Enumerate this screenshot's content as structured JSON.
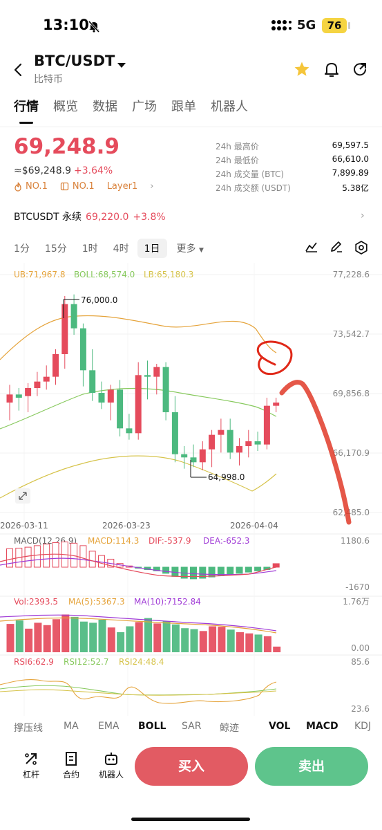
{
  "status": {
    "time": "13:10",
    "network": "5G",
    "battery": "76"
  },
  "header": {
    "pair": "BTC/USDT",
    "subtitle": "比特币"
  },
  "tabs": [
    "行情",
    "概览",
    "数据",
    "广场",
    "跟单",
    "机器人"
  ],
  "price": {
    "last": "69,248.9",
    "usd": "≈$69,248.9",
    "change": "+3.64%",
    "badges": [
      "NO.1",
      "NO.1",
      "Layer1"
    ]
  },
  "stats": [
    {
      "label": "24h 最高价",
      "value": "69,597.5"
    },
    {
      "label": "24h 最低价",
      "value": "66,610.0"
    },
    {
      "label": "24h 成交量 (BTC)",
      "value": "7,899.89"
    },
    {
      "label": "24h 成交额 (USDT)",
      "value": "5.38亿"
    }
  ],
  "perpetual": {
    "name": "BTCUSDT 永续",
    "price": "69,220.0",
    "change": "+3.8%"
  },
  "timeframes": {
    "items": [
      "1分",
      "15分",
      "1时",
      "4时",
      "1日",
      "更多"
    ],
    "selected": "1日"
  },
  "main_legend": {
    "ub": "UB:71,967.8",
    "boll": "BOLL:68,574.0",
    "lb": "LB:65,180.3"
  },
  "price_axis": [
    "77,228.6",
    "73,542.7",
    "69,856.8",
    "66,170.9",
    "62,485.0"
  ],
  "date_axis": [
    "2026-03-11",
    "2026-03-23",
    "2026-04-04"
  ],
  "annotations": {
    "high": "76,000.0",
    "low": "64,998.0"
  },
  "macd_legend": {
    "name": "MACD(12,26,9)",
    "macd": "MACD:114.3",
    "dif": "DIF:-537.9",
    "dea": "DEA:-652.3",
    "top": "1180.6",
    "bottom": "-1670"
  },
  "vol_legend": {
    "vol": "Vol:2393.5",
    "ma5": "MA(5):5367.3",
    "ma10": "MA(10):7152.84",
    "top": "1.76万",
    "bottom": "0.00"
  },
  "rsi_legend": {
    "rsi6": "RSI6:62.9",
    "rsi12": "RSI12:52.7",
    "rsi24": "RSI24:48.4",
    "top": "85.6",
    "bottom": "23.6"
  },
  "indicators": [
    "撑压线",
    "MA",
    "EMA",
    "BOLL",
    "SAR",
    "鲸迹",
    "VOL",
    "MACD",
    "KDJ"
  ],
  "bottom_bar": {
    "leverage": "杠杆",
    "contract": "合约",
    "robot": "机器人",
    "buy": "买入",
    "sell": "卖出"
  },
  "colors": {
    "up": "#e54b5c",
    "down": "#4cb97f",
    "ub": "#e5a33a",
    "boll": "#87c95d",
    "lb": "#d6c34a"
  },
  "chart_data": {
    "type": "candlestick",
    "interval": "1日",
    "ylim": [
      62485.0,
      77228.6
    ],
    "candles": [
      {
        "o": 69300,
        "h": 70400,
        "l": 68200,
        "c": 69800
      },
      {
        "o": 69800,
        "h": 70200,
        "l": 68800,
        "c": 69600
      },
      {
        "o": 69700,
        "h": 70500,
        "l": 68700,
        "c": 70200
      },
      {
        "o": 70200,
        "h": 71200,
        "l": 69700,
        "c": 70600
      },
      {
        "o": 70600,
        "h": 71600,
        "l": 70100,
        "c": 70900
      },
      {
        "o": 70900,
        "h": 72600,
        "l": 70400,
        "c": 72300
      },
      {
        "o": 72300,
        "h": 75900,
        "l": 71400,
        "c": 75400
      },
      {
        "o": 75400,
        "h": 76000,
        "l": 73500,
        "c": 73900
      },
      {
        "o": 73900,
        "h": 74200,
        "l": 70300,
        "c": 71300
      },
      {
        "o": 71300,
        "h": 72600,
        "l": 69400,
        "c": 69900
      },
      {
        "o": 69900,
        "h": 70600,
        "l": 68900,
        "c": 69300
      },
      {
        "o": 69300,
        "h": 70400,
        "l": 68200,
        "c": 70100
      },
      {
        "o": 70100,
        "h": 70700,
        "l": 67200,
        "c": 67700
      },
      {
        "o": 67700,
        "h": 68600,
        "l": 67000,
        "c": 67400
      },
      {
        "o": 67400,
        "h": 71800,
        "l": 67000,
        "c": 71000
      },
      {
        "o": 71000,
        "h": 71900,
        "l": 69500,
        "c": 70900
      },
      {
        "o": 70900,
        "h": 71700,
        "l": 69800,
        "c": 71500
      },
      {
        "o": 71500,
        "h": 71800,
        "l": 68200,
        "c": 68700
      },
      {
        "o": 68700,
        "h": 69700,
        "l": 65600,
        "c": 66100
      },
      {
        "o": 66100,
        "h": 66600,
        "l": 65200,
        "c": 65900
      },
      {
        "o": 65900,
        "h": 66700,
        "l": 65300,
        "c": 65600
      },
      {
        "o": 65600,
        "h": 66900,
        "l": 65100,
        "c": 66400
      },
      {
        "o": 66400,
        "h": 67600,
        "l": 65300,
        "c": 67300
      },
      {
        "o": 67300,
        "h": 68300,
        "l": 66200,
        "c": 67600
      },
      {
        "o": 67600,
        "h": 68300,
        "l": 65800,
        "c": 66200
      },
      {
        "o": 66200,
        "h": 67100,
        "l": 65400,
        "c": 66600
      },
      {
        "o": 66600,
        "h": 67600,
        "l": 65900,
        "c": 66900
      },
      {
        "o": 66900,
        "h": 67500,
        "l": 66300,
        "c": 66700
      },
      {
        "o": 66700,
        "h": 69600,
        "l": 66400,
        "c": 69100
      },
      {
        "o": 69100,
        "h": 69600,
        "l": 68700,
        "c": 69300
      }
    ],
    "macd_hist": [
      600,
      620,
      650,
      700,
      750,
      800,
      820,
      780,
      700,
      520,
      380,
      260,
      120,
      40,
      -20,
      -80,
      -120,
      -200,
      -300,
      -360,
      -380,
      -360,
      -320,
      -280,
      -240,
      -200,
      -160,
      -120,
      -80,
      114
    ],
    "volume": [
      12000,
      13500,
      10000,
      12500,
      11500,
      14000,
      16000,
      15000,
      13000,
      12500,
      13800,
      10500,
      8500,
      11000,
      12800,
      14500,
      12200,
      13200,
      11800,
      10200,
      9800,
      9000,
      11000,
      10800,
      9600,
      8500,
      8000,
      7500,
      6800,
      2393.5
    ]
  }
}
